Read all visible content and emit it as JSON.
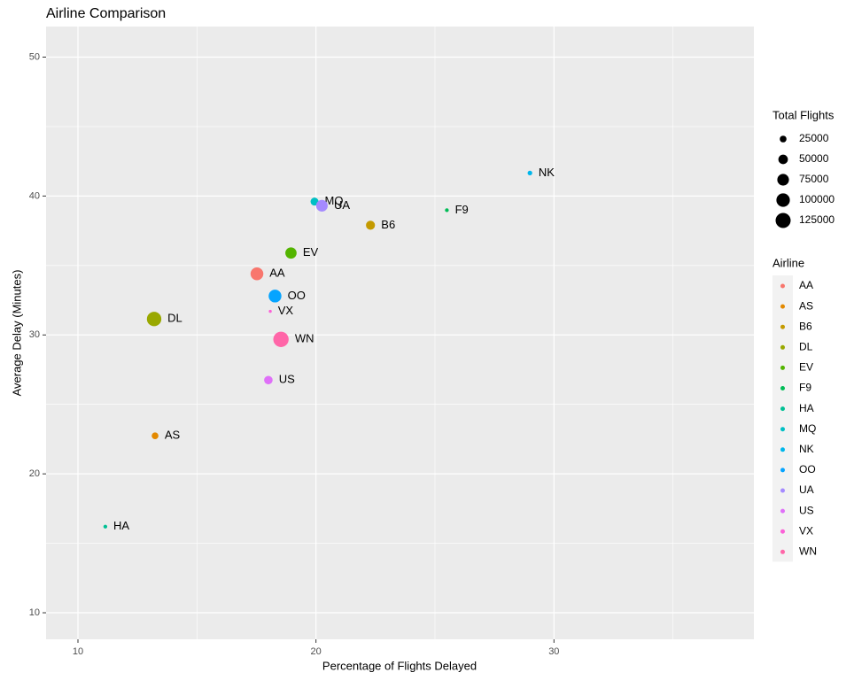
{
  "chart_data": {
    "type": "scatter",
    "title": "Airline Comparison",
    "x_label": "Percentage of Flights Delayed",
    "y_label": "Average Delay (Minutes)",
    "categories": [
      "AA",
      "AS",
      "B6",
      "DL",
      "EV",
      "F9",
      "HA",
      "MQ",
      "NK",
      "OO",
      "UA",
      "US",
      "VX",
      "WN"
    ],
    "x": [
      17.52,
      13.24,
      22.29,
      13.2,
      18.95,
      25.5,
      11.15,
      19.94,
      28.99,
      18.28,
      20.25,
      18.0,
      18.08,
      18.53
    ],
    "values": [
      34.4,
      22.74,
      37.9,
      31.15,
      35.9,
      38.98,
      16.2,
      39.6,
      41.66,
      32.8,
      39.3,
      26.75,
      31.7,
      29.68
    ],
    "sizes": [
      90000,
      25000,
      45000,
      115000,
      70000,
      8000,
      8000,
      35000,
      12000,
      90000,
      75000,
      40000,
      5000,
      130000
    ],
    "colors": [
      "#F8766D",
      "#E38900",
      "#C49A00",
      "#99A800",
      "#53B400",
      "#00BC56",
      "#00C094",
      "#00BFC4",
      "#00B6EB",
      "#06A4FF",
      "#A58AFF",
      "#DF70F8",
      "#FB61D7",
      "#FF66A8"
    ],
    "xlim": [
      8.66,
      38.4
    ],
    "ylim": [
      8.09,
      52.2
    ],
    "xticks": [
      10,
      20,
      30
    ],
    "yticks": [
      10,
      20,
      30,
      40,
      50
    ],
    "size_legend_title": "Total Flights",
    "size_legend": [
      25000,
      50000,
      75000,
      100000,
      125000
    ],
    "color_legend_title": "Airline",
    "grid": true
  }
}
